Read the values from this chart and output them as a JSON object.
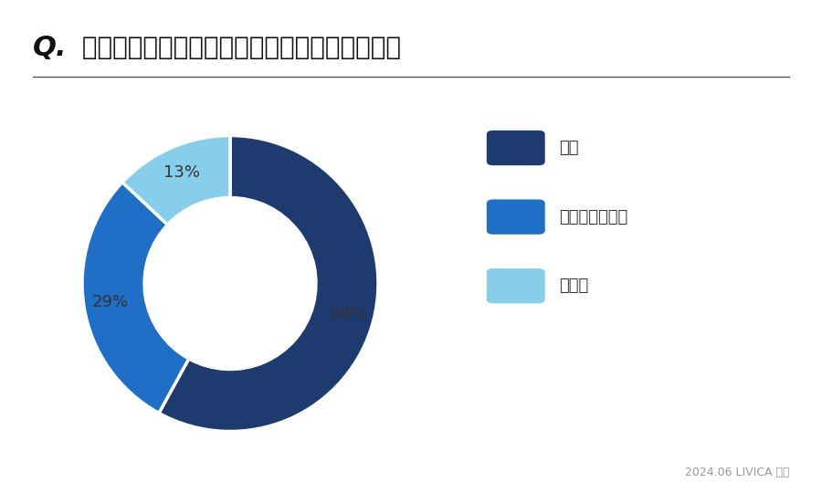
{
  "title_q": "Q.",
  "title_text": " またオール電化の住宅に住みたいと思いますか",
  "values": [
    58,
    29,
    13
  ],
  "pct_labels": [
    "58%",
    "29%",
    "13%"
  ],
  "colors": [
    "#1e3a6e",
    "#1e6fc5",
    "#87ceeb"
  ],
  "legend_labels": [
    "はい",
    "どちらでもない",
    "いいえ"
  ],
  "footer": "2024.06 LIVICA 調査",
  "bg_color": "#ffffff",
  "title_fontsize": 20,
  "legend_fontsize": 13,
  "pct_fontsize": 13
}
